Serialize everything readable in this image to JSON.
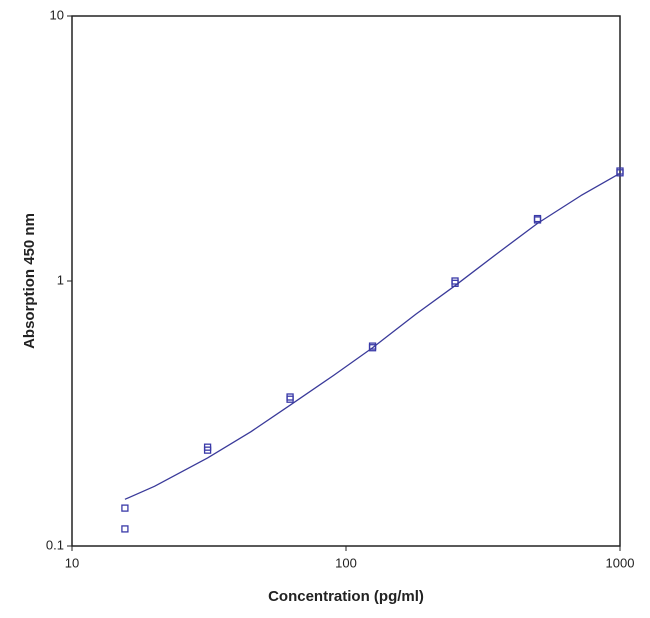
{
  "chart_data": {
    "type": "scatter",
    "xlabel": "Concentration (pg/ml)",
    "ylabel": "Absorption 450 nm",
    "xscale": "log",
    "yscale": "log",
    "xlim": [
      10,
      1000
    ],
    "ylim": [
      0.1,
      10
    ],
    "xticks": [
      10,
      100,
      1000
    ],
    "yticks": [
      0.1,
      1,
      10
    ],
    "series": [
      {
        "type": "scatter",
        "marker": "square",
        "color": "#3a3aa8",
        "x": [
          15.6,
          15.6,
          31.25,
          31.25,
          62.5,
          62.5,
          125,
          125,
          250,
          250,
          500,
          500,
          1000,
          1000
        ],
        "values": [
          0.139,
          0.116,
          0.236,
          0.23,
          0.365,
          0.358,
          0.568,
          0.56,
          1.0,
          0.98,
          1.72,
          1.7,
          2.6,
          2.56
        ]
      },
      {
        "type": "line",
        "color": "#3a3a9a",
        "x": [
          15.6,
          20,
          31.25,
          45,
          62.5,
          90,
          125,
          180,
          250,
          360,
          500,
          720,
          1000
        ],
        "values": [
          0.15,
          0.168,
          0.215,
          0.27,
          0.34,
          0.44,
          0.56,
          0.75,
          0.96,
          1.28,
          1.65,
          2.1,
          2.55
        ]
      }
    ]
  }
}
